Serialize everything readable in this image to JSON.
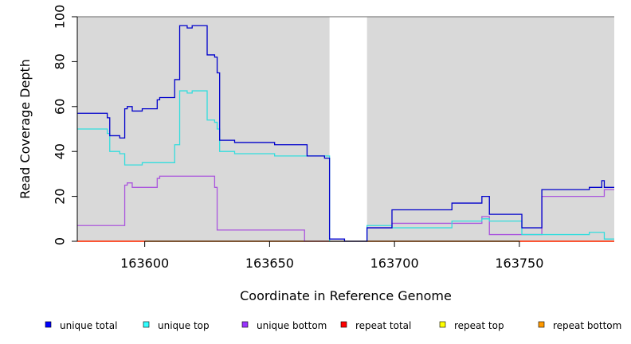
{
  "chart_data": {
    "type": "line",
    "title": "",
    "xlabel": "Coordinate in Reference Genome",
    "ylabel": "Read Coverage Depth",
    "xlim": [
      163573,
      163788
    ],
    "ylim": [
      0,
      100
    ],
    "xticks": [
      163600,
      163650,
      163700,
      163750
    ],
    "yticks": [
      0,
      20,
      40,
      60,
      80,
      100
    ],
    "xtick_labels": [
      "163600",
      "163650",
      "163700",
      "163750"
    ],
    "ytick_labels": [
      "0",
      "20",
      "40",
      "60",
      "80",
      "100"
    ],
    "background_shading": {
      "color": "#d9d9d9",
      "gap": [
        163674,
        163689
      ]
    },
    "grid": false,
    "legend_position": "bottom",
    "series": [
      {
        "name": "unique total",
        "color": "#0000cc",
        "step": [
          [
            163573,
            57
          ],
          [
            163585,
            55
          ],
          [
            163586,
            47
          ],
          [
            163590,
            46
          ],
          [
            163592,
            59
          ],
          [
            163593,
            60
          ],
          [
            163595,
            58
          ],
          [
            163599,
            59
          ],
          [
            163605,
            63
          ],
          [
            163606,
            64
          ],
          [
            163612,
            72
          ],
          [
            163614,
            96
          ],
          [
            163617,
            95
          ],
          [
            163619,
            96
          ],
          [
            163625,
            83
          ],
          [
            163628,
            82
          ],
          [
            163629,
            75
          ],
          [
            163630,
            45
          ],
          [
            163636,
            44
          ],
          [
            163652,
            43
          ],
          [
            163665,
            38
          ],
          [
            163672,
            37
          ],
          [
            163674,
            1
          ],
          [
            163680,
            0
          ],
          [
            163689,
            6
          ],
          [
            163699,
            14
          ],
          [
            163723,
            17
          ],
          [
            163735,
            20
          ],
          [
            163738,
            12
          ],
          [
            163751,
            6
          ],
          [
            163759,
            23
          ],
          [
            163778,
            24
          ],
          [
            163783,
            27
          ],
          [
            163784,
            24
          ],
          [
            163788,
            24
          ]
        ]
      },
      {
        "name": "unique top",
        "color": "#33dddd",
        "step": [
          [
            163573,
            50
          ],
          [
            163585,
            48
          ],
          [
            163586,
            40
          ],
          [
            163590,
            39
          ],
          [
            163592,
            34
          ],
          [
            163599,
            35
          ],
          [
            163612,
            43
          ],
          [
            163614,
            67
          ],
          [
            163617,
            66
          ],
          [
            163619,
            67
          ],
          [
            163625,
            54
          ],
          [
            163628,
            53
          ],
          [
            163629,
            50
          ],
          [
            163630,
            40
          ],
          [
            163636,
            39
          ],
          [
            163652,
            38
          ],
          [
            163665,
            38
          ],
          [
            163674,
            0
          ],
          [
            163689,
            7
          ],
          [
            163699,
            6
          ],
          [
            163723,
            9
          ],
          [
            163735,
            10
          ],
          [
            163738,
            9
          ],
          [
            163751,
            3
          ],
          [
            163759,
            3
          ],
          [
            163778,
            4
          ],
          [
            163784,
            1
          ],
          [
            163788,
            1
          ]
        ]
      },
      {
        "name": "unique bottom",
        "color": "#aa55dd",
        "step": [
          [
            163573,
            7
          ],
          [
            163592,
            25
          ],
          [
            163593,
            26
          ],
          [
            163595,
            24
          ],
          [
            163605,
            28
          ],
          [
            163606,
            29
          ],
          [
            163628,
            24
          ],
          [
            163629,
            5
          ],
          [
            163664,
            0
          ],
          [
            163689,
            6
          ],
          [
            163699,
            8
          ],
          [
            163735,
            11
          ],
          [
            163738,
            3
          ],
          [
            163759,
            20
          ],
          [
            163784,
            23
          ],
          [
            163788,
            23
          ]
        ]
      },
      {
        "name": "repeat total",
        "color": "#ff0000",
        "step": [
          [
            163573,
            0
          ],
          [
            163788,
            0
          ]
        ]
      },
      {
        "name": "repeat top",
        "color": "#ffff00",
        "step": [
          [
            163573,
            0
          ],
          [
            163788,
            0
          ]
        ]
      },
      {
        "name": "repeat bottom",
        "color": "#ff9900",
        "step": [
          [
            163573,
            0
          ],
          [
            163788,
            0
          ]
        ]
      }
    ]
  }
}
